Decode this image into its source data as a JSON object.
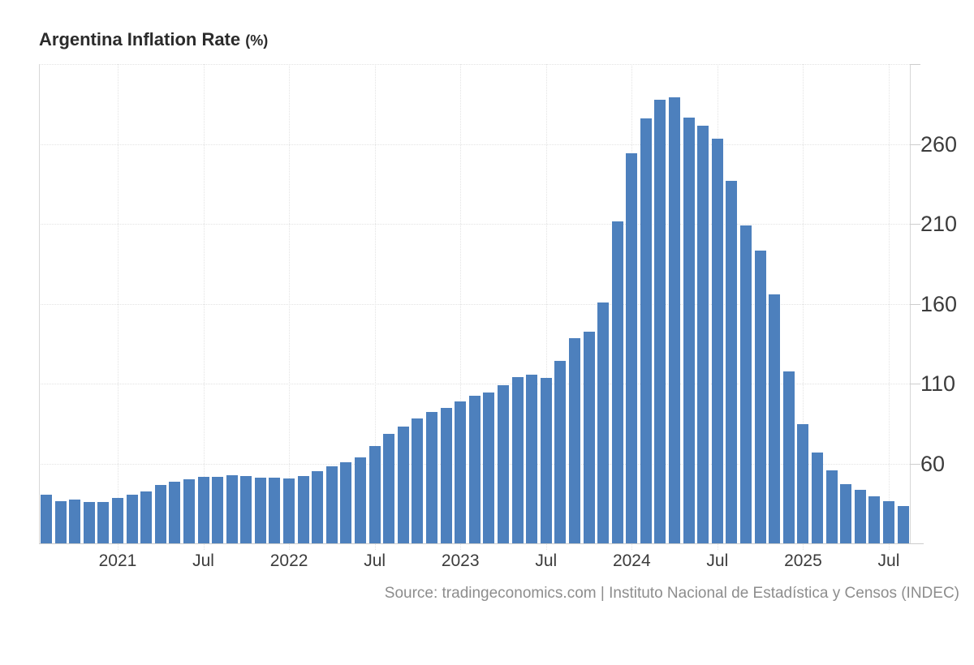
{
  "title": {
    "text": "Argentina Inflation Rate",
    "unit": "(%)"
  },
  "source": {
    "text": "Source: tradingeconomics.com | Instituto Nacional de Estadística y Censos (INDEC)"
  },
  "chart_data": {
    "type": "bar",
    "title": "Argentina Inflation Rate (%)",
    "ylabel": "",
    "xlabel": "",
    "bar_color": "#4d80bd",
    "grid": "dotted",
    "legend_position": "none",
    "ylim": [
      10,
      310
    ],
    "y_ticks": [
      60,
      110,
      160,
      210,
      260
    ],
    "x_ticks": [
      {
        "index": 5,
        "label": "2021"
      },
      {
        "index": 11,
        "label": "Jul"
      },
      {
        "index": 17,
        "label": "2022"
      },
      {
        "index": 23,
        "label": "Jul"
      },
      {
        "index": 29,
        "label": "2023"
      },
      {
        "index": 35,
        "label": "Jul"
      },
      {
        "index": 41,
        "label": "2024"
      },
      {
        "index": 47,
        "label": "Jul"
      },
      {
        "index": 53,
        "label": "2025"
      },
      {
        "index": 59,
        "label": "Jul"
      }
    ],
    "months": [
      "2020-08",
      "2020-09",
      "2020-10",
      "2020-11",
      "2020-12",
      "2021-01",
      "2021-02",
      "2021-03",
      "2021-04",
      "2021-05",
      "2021-06",
      "2021-07",
      "2021-08",
      "2021-09",
      "2021-10",
      "2021-11",
      "2021-12",
      "2022-01",
      "2022-02",
      "2022-03",
      "2022-04",
      "2022-05",
      "2022-06",
      "2022-07",
      "2022-08",
      "2022-09",
      "2022-10",
      "2022-11",
      "2022-12",
      "2023-01",
      "2023-02",
      "2023-03",
      "2023-04",
      "2023-05",
      "2023-06",
      "2023-07",
      "2023-08",
      "2023-09",
      "2023-10",
      "2023-11",
      "2023-12",
      "2024-01",
      "2024-02",
      "2024-03",
      "2024-04",
      "2024-05",
      "2024-06",
      "2024-07",
      "2024-08",
      "2024-09",
      "2024-10",
      "2024-11",
      "2024-12",
      "2025-01",
      "2025-02",
      "2025-03",
      "2025-04",
      "2025-05",
      "2025-06",
      "2025-07",
      "2025-08"
    ],
    "values": [
      40.7,
      36.6,
      37.2,
      35.8,
      36.1,
      38.5,
      40.7,
      42.6,
      46.3,
      48.8,
      50.2,
      51.8,
      51.4,
      52.5,
      52.1,
      51.2,
      50.9,
      50.7,
      52.3,
      55.1,
      58.0,
      60.7,
      64.0,
      71.0,
      78.5,
      83.0,
      88.0,
      92.4,
      94.8,
      98.8,
      102.5,
      104.3,
      108.8,
      114.2,
      115.6,
      113.4,
      124.4,
      138.3,
      142.7,
      160.9,
      211.4,
      254.2,
      276.2,
      287.9,
      289.4,
      276.4,
      271.5,
      263.4,
      236.7,
      209.0,
      193.0,
      166.0,
      117.8,
      84.5,
      66.9,
      55.9,
      47.3,
      43.5,
      39.4,
      36.6,
      33.6
    ]
  }
}
